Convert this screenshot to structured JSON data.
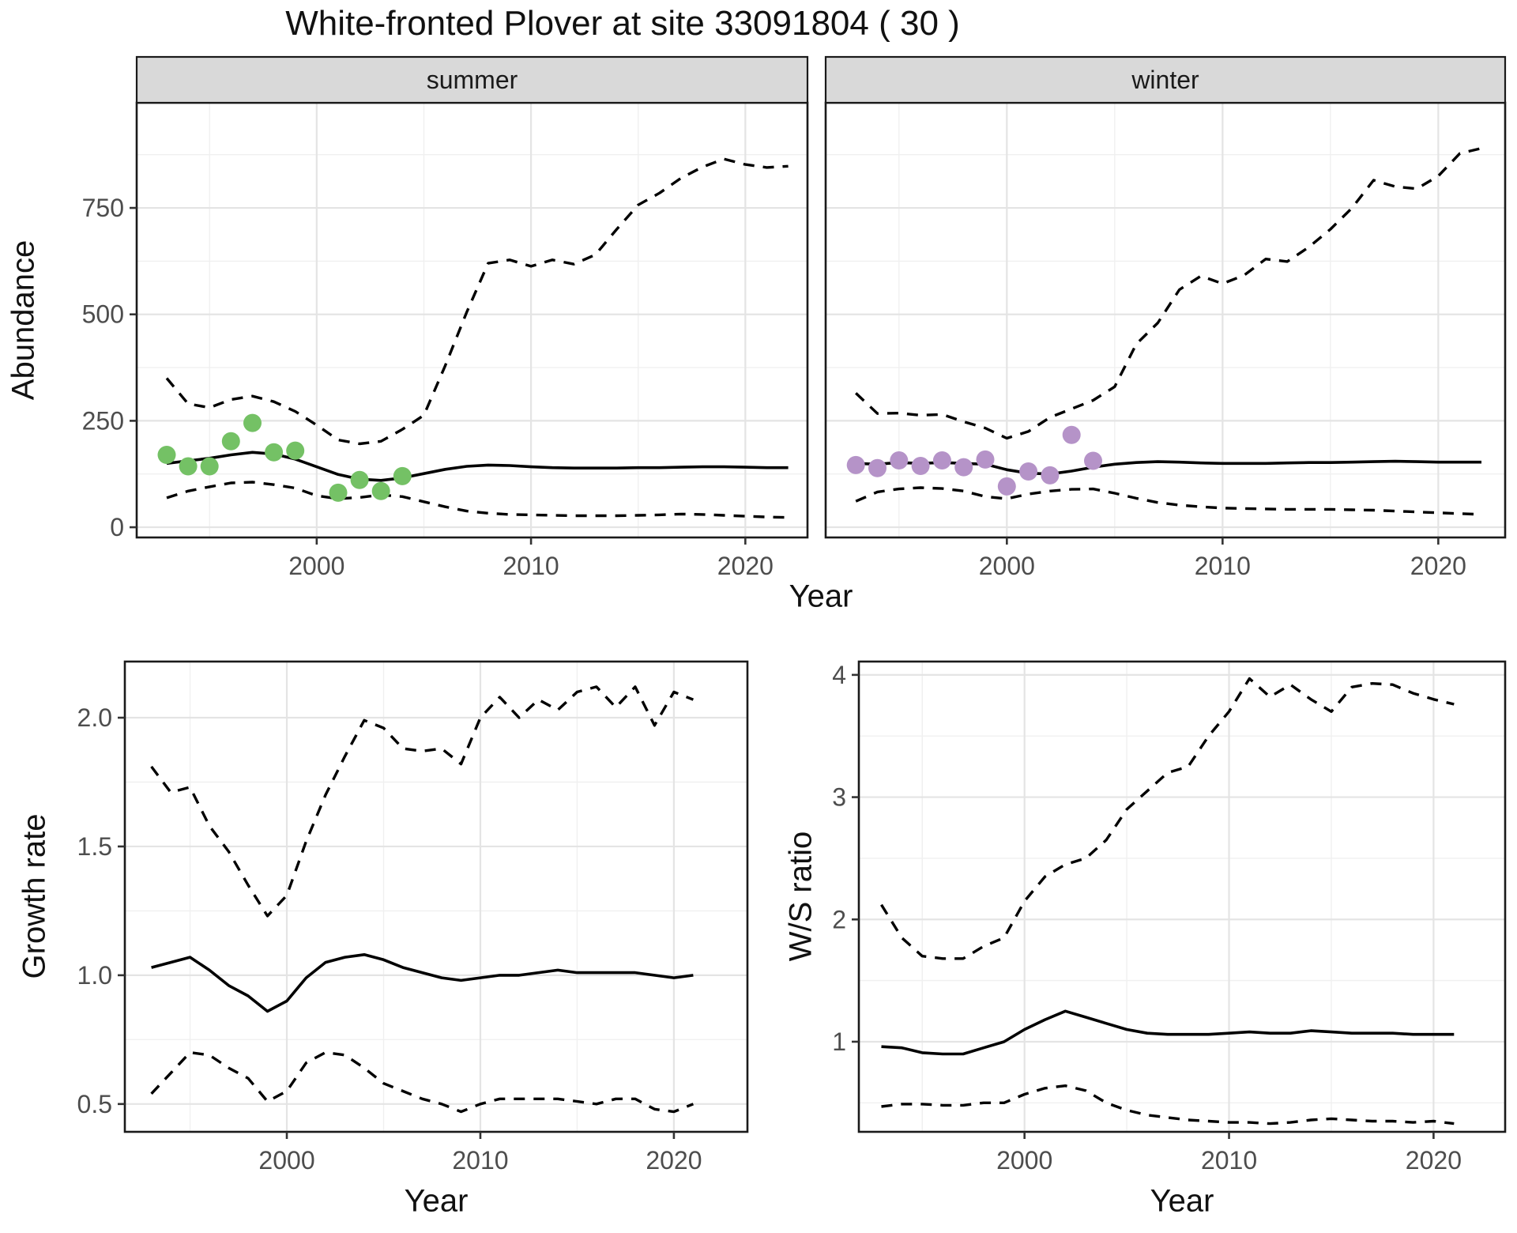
{
  "title": "White-fronted Plover at site 33091804 ( 30 )",
  "axis_labels": {
    "abundance": "Abundance",
    "year_top": "Year",
    "growth_rate": "Growth rate",
    "year_growth": "Year",
    "ws_ratio": "W/S ratio",
    "year_ws": "Year"
  },
  "colors": {
    "summer_points": "#74c165",
    "winter_points": "#b593c8",
    "line": "#000000",
    "grid_major": "#e4e4e4",
    "grid_minor": "#f0f0f0",
    "strip_bg": "#d9d9d9",
    "strip_text": "#1a1a1a",
    "panel_border": "#1a1a1a",
    "tick_mark": "#333333",
    "tick_label": "#4d4d4d",
    "panel_bg": "#ffffff"
  },
  "chart_data": [
    {
      "panel": "summer",
      "type": "line",
      "facet_label": "summer",
      "xlim": [
        1991.6,
        2022.9
      ],
      "ylim": [
        -24,
        997
      ],
      "x_ticks": {
        "values": [
          2000,
          2010,
          2020
        ],
        "labels": [
          "2000",
          "2010",
          "2020"
        ]
      },
      "x_minor": [
        1995,
        2005,
        2015
      ],
      "y_ticks": {
        "values": [
          0,
          250,
          500,
          750
        ],
        "labels": [
          "0",
          "250",
          "500",
          "750"
        ]
      },
      "y_minor": [
        125,
        375,
        625,
        875
      ],
      "years": [
        1993,
        1994,
        1995,
        1996,
        1997,
        1998,
        1999,
        2000,
        2001,
        2002,
        2003,
        2004,
        2005,
        2006,
        2007,
        2008,
        2009,
        2010,
        2011,
        2012,
        2013,
        2014,
        2015,
        2016,
        2017,
        2018,
        2019,
        2020,
        2021,
        2022
      ],
      "series": [
        {
          "name": "upper_ci",
          "style": "dashed",
          "values": [
            350,
            290,
            281,
            300,
            308,
            295,
            272,
            240,
            205,
            196,
            202,
            230,
            263,
            380,
            505,
            620,
            628,
            613,
            628,
            618,
            640,
            700,
            757,
            785,
            820,
            846,
            865,
            852,
            845,
            848
          ]
        },
        {
          "name": "median",
          "style": "solid",
          "values": [
            150,
            156,
            162,
            170,
            176,
            172,
            160,
            142,
            124,
            113,
            110,
            116,
            126,
            136,
            143,
            146,
            145,
            142,
            140,
            139,
            139,
            139,
            140,
            140,
            141,
            142,
            142,
            141,
            140,
            140
          ]
        },
        {
          "name": "lower_ci",
          "style": "dashed",
          "values": [
            69,
            85,
            95,
            104,
            106,
            100,
            92,
            74,
            67,
            70,
            76,
            72,
            60,
            48,
            38,
            33,
            30,
            29,
            28,
            27,
            27,
            27,
            28,
            29,
            31,
            30,
            28,
            26,
            24,
            23
          ]
        }
      ],
      "points": {
        "name": "observed-counts-summer",
        "color_key": "summer_points",
        "x": [
          1993,
          1994,
          1995,
          1996,
          1997,
          1998,
          1999,
          2001,
          2002,
          2003,
          2004
        ],
        "y": [
          170,
          143,
          143,
          202,
          245,
          176,
          180,
          81,
          111,
          85,
          120
        ]
      }
    },
    {
      "panel": "winter",
      "type": "line",
      "facet_label": "winter",
      "xlim": [
        1991.6,
        2023.1
      ],
      "ylim": [
        -24,
        997
      ],
      "x_ticks": {
        "values": [
          2000,
          2010,
          2020
        ],
        "labels": [
          "2000",
          "2010",
          "2020"
        ]
      },
      "x_minor": [
        1995,
        2005,
        2015
      ],
      "y_ticks": {
        "values": [
          0,
          250,
          500,
          750
        ],
        "labels": [
          "0",
          "250",
          "500",
          "750"
        ]
      },
      "y_minor": [
        125,
        375,
        625,
        875
      ],
      "years": [
        1993,
        1994,
        1995,
        1996,
        1997,
        1998,
        1999,
        2000,
        2001,
        2002,
        2003,
        2004,
        2005,
        2006,
        2007,
        2008,
        2009,
        2010,
        2011,
        2012,
        2013,
        2014,
        2015,
        2016,
        2017,
        2018,
        2019,
        2020,
        2021,
        2022
      ],
      "series": [
        {
          "name": "upper_ci",
          "style": "dashed",
          "values": [
            315,
            267,
            268,
            263,
            265,
            248,
            233,
            209,
            225,
            258,
            278,
            298,
            330,
            430,
            480,
            558,
            590,
            572,
            592,
            630,
            624,
            658,
            700,
            750,
            815,
            800,
            795,
            825,
            878,
            890
          ]
        },
        {
          "name": "median",
          "style": "solid",
          "values": [
            150,
            148,
            152,
            150,
            152,
            150,
            148,
            135,
            127,
            125,
            132,
            141,
            148,
            152,
            154,
            153,
            151,
            150,
            150,
            150,
            151,
            152,
            152,
            153,
            154,
            155,
            154,
            153,
            153,
            153
          ]
        },
        {
          "name": "lower_ci",
          "style": "dashed",
          "values": [
            61,
            83,
            90,
            93,
            91,
            85,
            72,
            67,
            78,
            85,
            89,
            90,
            80,
            68,
            58,
            52,
            48,
            45,
            44,
            43,
            42,
            42,
            42,
            41,
            40,
            38,
            36,
            34,
            32,
            30
          ]
        }
      ],
      "points": {
        "name": "observed-counts-winter",
        "color_key": "winter_points",
        "x": [
          1993,
          1994,
          1995,
          1996,
          1997,
          1998,
          1999,
          2000,
          2001,
          2002,
          2003,
          2004
        ],
        "y": [
          146,
          139,
          157,
          144,
          157,
          141,
          159,
          96,
          131,
          122,
          217,
          156
        ]
      }
    },
    {
      "panel": "growth",
      "type": "line",
      "facet_label": null,
      "xlim": [
        1991.63,
        2023.8
      ],
      "ylim": [
        0.392,
        2.218
      ],
      "x_ticks": {
        "values": [
          2000,
          2010,
          2020
        ],
        "labels": [
          "2000",
          "2010",
          "2020"
        ]
      },
      "x_minor": [
        1995,
        2005,
        2015
      ],
      "y_ticks": {
        "values": [
          0.5,
          1.0,
          1.5,
          2.0
        ],
        "labels": [
          "0.5",
          "1.0",
          "1.5",
          "2.0"
        ]
      },
      "y_minor": [
        0.75,
        1.25,
        1.75
      ],
      "years": [
        1993,
        1994,
        1995,
        1996,
        1997,
        1998,
        1999,
        2000,
        2001,
        2002,
        2003,
        2004,
        2005,
        2006,
        2007,
        2008,
        2009,
        2010,
        2011,
        2012,
        2013,
        2014,
        2015,
        2016,
        2017,
        2018,
        2019,
        2020,
        2021
      ],
      "series": [
        {
          "name": "upper_ci",
          "style": "dashed",
          "values": [
            1.81,
            1.71,
            1.73,
            1.58,
            1.48,
            1.35,
            1.23,
            1.31,
            1.52,
            1.7,
            1.85,
            1.99,
            1.96,
            1.88,
            1.87,
            1.88,
            1.82,
            2.0,
            2.08,
            2.0,
            2.07,
            2.03,
            2.1,
            2.12,
            2.04,
            2.12,
            1.97,
            2.1,
            2.07
          ]
        },
        {
          "name": "median",
          "style": "solid",
          "values": [
            1.03,
            1.05,
            1.07,
            1.02,
            0.96,
            0.92,
            0.86,
            0.9,
            0.99,
            1.05,
            1.07,
            1.08,
            1.06,
            1.03,
            1.01,
            0.99,
            0.98,
            0.99,
            1.0,
            1.0,
            1.01,
            1.02,
            1.01,
            1.01,
            1.01,
            1.01,
            1.0,
            0.99,
            1.0
          ]
        },
        {
          "name": "lower_ci",
          "style": "dashed",
          "values": [
            0.54,
            0.62,
            0.7,
            0.69,
            0.64,
            0.6,
            0.51,
            0.55,
            0.66,
            0.7,
            0.69,
            0.64,
            0.58,
            0.55,
            0.52,
            0.5,
            0.47,
            0.5,
            0.52,
            0.52,
            0.52,
            0.52,
            0.51,
            0.5,
            0.52,
            0.52,
            0.48,
            0.47,
            0.5
          ]
        }
      ],
      "points": null
    },
    {
      "panel": "ws",
      "type": "line",
      "facet_label": null,
      "xlim": [
        1991.9,
        2023.5
      ],
      "ylim": [
        0.263,
        4.109
      ],
      "x_ticks": {
        "values": [
          2000,
          2010,
          2020
        ],
        "labels": [
          "2000",
          "2010",
          "2020"
        ]
      },
      "x_minor": [
        1995,
        2005,
        2015
      ],
      "y_ticks": {
        "values": [
          1,
          2,
          3,
          4
        ],
        "labels": [
          "1",
          "2",
          "3",
          "4"
        ]
      },
      "y_minor": [
        0.5,
        1.5,
        2.5,
        3.5
      ],
      "years": [
        1993,
        1994,
        1995,
        1996,
        1997,
        1998,
        1999,
        2000,
        2001,
        2002,
        2003,
        2004,
        2005,
        2006,
        2007,
        2008,
        2009,
        2010,
        2011,
        2012,
        2013,
        2014,
        2015,
        2016,
        2017,
        2018,
        2019,
        2020,
        2021
      ],
      "series": [
        {
          "name": "upper_ci",
          "style": "dashed",
          "values": [
            2.12,
            1.85,
            1.7,
            1.68,
            1.68,
            1.78,
            1.85,
            2.15,
            2.35,
            2.45,
            2.5,
            2.65,
            2.9,
            3.05,
            3.2,
            3.25,
            3.5,
            3.7,
            3.97,
            3.82,
            3.92,
            3.8,
            3.7,
            3.9,
            3.93,
            3.92,
            3.85,
            3.8,
            3.76
          ]
        },
        {
          "name": "median",
          "style": "solid",
          "values": [
            0.96,
            0.95,
            0.91,
            0.9,
            0.9,
            0.95,
            1.0,
            1.1,
            1.18,
            1.25,
            1.2,
            1.15,
            1.1,
            1.07,
            1.06,
            1.06,
            1.06,
            1.07,
            1.08,
            1.07,
            1.07,
            1.09,
            1.08,
            1.07,
            1.07,
            1.07,
            1.06,
            1.06,
            1.06
          ]
        },
        {
          "name": "lower_ci",
          "style": "dashed",
          "values": [
            0.47,
            0.49,
            0.49,
            0.48,
            0.48,
            0.5,
            0.5,
            0.57,
            0.62,
            0.64,
            0.6,
            0.5,
            0.44,
            0.4,
            0.38,
            0.36,
            0.35,
            0.34,
            0.34,
            0.33,
            0.34,
            0.36,
            0.37,
            0.36,
            0.35,
            0.35,
            0.34,
            0.35,
            0.33
          ]
        }
      ],
      "points": null
    }
  ]
}
